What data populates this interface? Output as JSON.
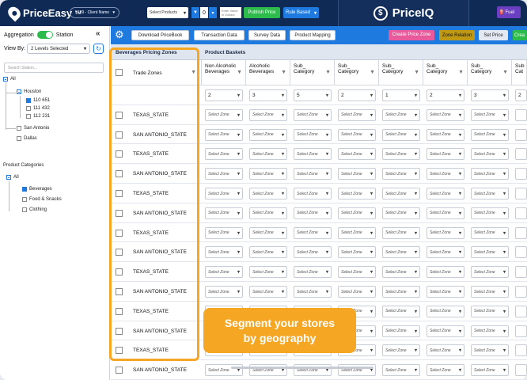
{
  "header": {
    "logo_text": "PriceEasy",
    "logo_tm": "TM",
    "client": "5189 - Client Name",
    "select_products": "Select Products",
    "count": "0",
    "enter_value": "Enter Value in Dollars",
    "publish": "Publish Price",
    "rule_based": "Rule Based",
    "brand": "PriceIQ",
    "fuel": "Fuel"
  },
  "sidebar": {
    "aggregation": "Aggregation",
    "station": "Station",
    "view_by": "View By:",
    "levels": "2 Levels Selected",
    "search_placeholder": "Search Station...",
    "all": "All",
    "houston": "Houston",
    "s1": "110 651",
    "s2": "111 432",
    "s3": "112 231",
    "san_antonio": "San Antonio",
    "dallas": "Dallas",
    "product_categories": "Product Categories",
    "pc_all": "All",
    "beverages": "Beverages",
    "food": "Food & Snacks",
    "clothing": "Clothing"
  },
  "toolbar": {
    "download": "Download PriceBook",
    "transaction": "Transaction Data",
    "survey": "Survey Data",
    "mapping": "Product Mapping",
    "create_zone": "Create Price Zone",
    "zone_relation": "Zone Relation",
    "set_price": "Set Price",
    "create": "Crea"
  },
  "grid": {
    "bpz_title": "Beverages Pricing Zones",
    "baskets_title": "Product Baskets",
    "trade_zones": "Trade Zones",
    "col1": "Non Alcoholic Beverages",
    "col2": "Alcoholic Beverages",
    "col3": "Sub_ Category",
    "col4": "Sub_ Category",
    "col5": "Sub_ Category",
    "col6": "Sub_ Category",
    "col7": "Sub_ Category",
    "col8": "Sub Cat",
    "first_values": [
      "2",
      "3",
      "5",
      "2",
      "1",
      "2",
      "3",
      "2"
    ],
    "placeholder": "Select Zone",
    "zones": [
      "TEXAS_STATE",
      "SAN ANTONIO_STATE",
      "TEXAS_STATE",
      "SAN ANTONIO_STATE",
      "TEXAS_STATE",
      "SAN ANTONIO_STATE",
      "TEXAS_STATE",
      "SAN ANTONIO_STATE",
      "TEXAS_STATE",
      "SAN ANTONIO_STATE",
      "TEXAS_STATE",
      "SAN ANTONIO_STATE",
      "TEXAS_STATE",
      "SAN ANTONIO_STATE"
    ]
  },
  "callout": {
    "line1": "Segment your stores",
    "line2": "by geography"
  }
}
